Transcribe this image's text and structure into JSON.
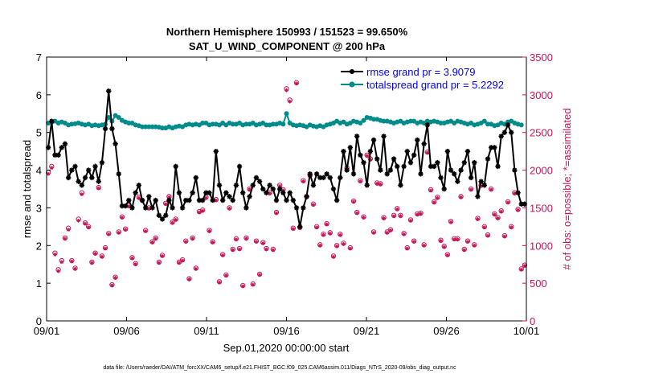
{
  "chart_data": {
    "type": "line",
    "title_line1": "Northern Hemisphere 150993 / 151523 = 99.650%",
    "title_line2": "SAT_U_WIND_COMPONENT @ 200 hPa",
    "xlabel": "Sep.01,2020 00:00:00 start",
    "ylabel_left": "rmse and totalspread",
    "ylabel_right": "# of obs: o=possible; *=assimilated",
    "footnote": "data file: /Users/raeder/DAI/ATM_forcXX/CAM6_setup/f.e21.FHIST_BGC.f09_025.CAM6assim.011/Diags_NTrS_2020-09/obs_diag_output.nc",
    "x_tick_labels": [
      "09/01",
      "09/06",
      "09/11",
      "09/16",
      "09/21",
      "09/26",
      "10/01"
    ],
    "x_tick_days": [
      0,
      5,
      10,
      15,
      20,
      25,
      30
    ],
    "xlim": [
      0,
      30
    ],
    "ylim_left": [
      0,
      7
    ],
    "y_left_ticks": [
      "0",
      "1",
      "2",
      "3",
      "4",
      "5",
      "6",
      "7"
    ],
    "ylim_right": [
      0,
      3500
    ],
    "y_right_ticks": [
      "0",
      "500",
      "1000",
      "1500",
      "2000",
      "2500",
      "3000",
      "3500"
    ],
    "legend": [
      "rmse grand pr = 3.9079",
      "totalspread grand pr = 5.2292"
    ],
    "colors": {
      "rmse": "#000000",
      "spread": "#008b8b",
      "obs": "#c8155a"
    },
    "series": [
      {
        "name": "rmse",
        "values": [
          4.6,
          5.3,
          4.4,
          4.4,
          4.6,
          4.7,
          3.8,
          4.0,
          4.1,
          3.7,
          3.6,
          3.8,
          4.0,
          3.8,
          4.1,
          3.7,
          4.2,
          5.1,
          6.1,
          5.1,
          4.7,
          3.9,
          3.05,
          3.05,
          3.2,
          3.0,
          3.4,
          3.6,
          3.2,
          3.0,
          3.3,
          3.0,
          3.2,
          2.8,
          2.7,
          2.8,
          3.2,
          3.0,
          4.1,
          3.4,
          3.0,
          3.2,
          3.2,
          3.4,
          3.8,
          3.2,
          3.2,
          3.4,
          3.4,
          3.2,
          4.5,
          3.6,
          3.2,
          3.4,
          3.3,
          3.2,
          3.6,
          4.1,
          3.4,
          3.0,
          3.3,
          3.6,
          3.8,
          3.7,
          3.5,
          3.4,
          3.6,
          3.5,
          3.2,
          3.5,
          3.4,
          3.2,
          3.4,
          3.2,
          3.0,
          2.5,
          3.0,
          3.3,
          3.9,
          3.6,
          3.9,
          3.8,
          3.8,
          3.9,
          3.8,
          3.5,
          3.2,
          3.8,
          4.5,
          4.0,
          4.6,
          3.9,
          4.9,
          4.4,
          4.2,
          3.6,
          4.5,
          4.8,
          4.3,
          4.0,
          4.9,
          3.9,
          4.0,
          4.3,
          4.1,
          3.6,
          4.1,
          4.5,
          4.2,
          4.4,
          4.8,
          3.9,
          4.7,
          5.2,
          4.1,
          4.1,
          4.2,
          3.8,
          3.5,
          4.5,
          4.0,
          3.9,
          3.7,
          4.0,
          4.2,
          4.5,
          3.8,
          4.2,
          3.3,
          3.7,
          3.6,
          4.3,
          4.6,
          4.6,
          4.1,
          4.9,
          5.0,
          5.2,
          5.0,
          4.0,
          3.4,
          3.1,
          3.1
        ]
      },
      {
        "name": "totalspread",
        "values": [
          5.25,
          5.27,
          5.3,
          5.25,
          5.28,
          5.25,
          5.2,
          5.22,
          5.23,
          5.25,
          5.22,
          5.2,
          5.22,
          5.18,
          5.2,
          5.18,
          5.2,
          5.22,
          5.4,
          5.3,
          5.45,
          5.4,
          5.32,
          5.28,
          5.25,
          5.25,
          5.2,
          5.18,
          5.15,
          5.15,
          5.15,
          5.15,
          5.15,
          5.14,
          5.12,
          5.12,
          5.15,
          5.12,
          5.15,
          5.17,
          5.15,
          5.2,
          5.22,
          5.2,
          5.22,
          5.2,
          5.25,
          5.25,
          5.2,
          5.22,
          5.22,
          5.2,
          5.25,
          5.2,
          5.25,
          5.22,
          5.22,
          5.25,
          5.2,
          5.22,
          5.22,
          5.25,
          5.2,
          5.22,
          5.25,
          5.2,
          5.2,
          5.22,
          5.22,
          5.25,
          5.22,
          5.5,
          5.25,
          5.2,
          5.18,
          5.2,
          5.18,
          5.15,
          5.2,
          5.17,
          5.15,
          5.18,
          5.15,
          5.2,
          5.22,
          5.25,
          5.3,
          5.25,
          5.28,
          5.22,
          5.25,
          5.3,
          5.28,
          5.25,
          5.32,
          5.4,
          5.38,
          5.35,
          5.35,
          5.32,
          5.3,
          5.3,
          5.28,
          5.25,
          5.28,
          5.3,
          5.25,
          5.28,
          5.3,
          5.3,
          5.25,
          5.28,
          5.25,
          5.3,
          5.28,
          5.3,
          5.28,
          5.25,
          5.25,
          5.28,
          5.3,
          5.25,
          5.3,
          5.28,
          5.25,
          5.22,
          5.25,
          5.2,
          5.22,
          5.25,
          5.3,
          5.22,
          5.22,
          5.18,
          5.2,
          5.25,
          5.22,
          5.28,
          5.3,
          5.25,
          5.22,
          5.2
        ]
      },
      {
        "name": "obs_possible",
        "values": [
          1970,
          2050,
          900,
          680,
          800,
          1100,
          1230,
          800,
          700,
          1350,
          1700,
          1300,
          1250,
          780,
          900,
          1770,
          860,
          970,
          1160,
          480,
          580,
          1180,
          1380,
          1220,
          1530,
          840,
          760,
          1640,
          1600,
          1200,
          1500,
          1050,
          1100,
          780,
          870,
          1560,
          1650,
          1310,
          1350,
          780,
          810,
          1060,
          560,
          1100,
          700,
          1450,
          1470,
          1640,
          1200,
          1050,
          1610,
          520,
          880,
          610,
          1500,
          950,
          1090,
          960,
          470,
          1100,
          1750,
          490,
          1060,
          620,
          1040,
          960,
          1700,
          950,
          1440,
          1800,
          1740,
          3080,
          2930,
          1230,
          3160,
          1240,
          1860,
          1650,
          1930,
          1550,
          1250,
          1010,
          1150,
          1290,
          1170,
          860,
          1000,
          1150,
          1030,
          2030,
          970,
          1590,
          1440,
          1860,
          1380,
          2200,
          2150,
          1180,
          1830,
          1820,
          1370,
          1180,
          1210,
          1400,
          1490,
          1400,
          1160,
          970,
          1340,
          1060,
          1420,
          1430,
          1010,
          2240,
          1740,
          1580,
          1640,
          1070,
          990,
          880,
          1320,
          1090,
          1090,
          1650,
          950,
          1060,
          1750,
          1010,
          1360,
          1800,
          1250,
          1140,
          1750,
          1420,
          1370,
          1460,
          1130,
          1580,
          1250,
          1700,
          1480,
          690,
          740
        ]
      },
      {
        "name": "obs_assimilated",
        "values": [
          1950,
          2030,
          880,
          660,
          780,
          1090,
          1210,
          790,
          690,
          1330,
          1680,
          1290,
          1240,
          770,
          890,
          1760,
          850,
          960,
          1150,
          470,
          570,
          1170,
          1370,
          1210,
          1520,
          830,
          750,
          1630,
          1590,
          1190,
          1490,
          1040,
          1090,
          770,
          860,
          1550,
          1640,
          1300,
          1340,
          770,
          800,
          1050,
          550,
          1090,
          690,
          1440,
          1460,
          1630,
          1190,
          1040,
          1600,
          510,
          870,
          600,
          1490,
          940,
          1080,
          950,
          460,
          1090,
          1740,
          480,
          1050,
          610,
          1030,
          950,
          1690,
          940,
          1430,
          1790,
          1730,
          3060,
          2910,
          1220,
          3150,
          1230,
          1850,
          1640,
          1920,
          1540,
          1240,
          1000,
          1140,
          1280,
          1160,
          850,
          990,
          1140,
          1020,
          2020,
          960,
          1580,
          1430,
          1850,
          1370,
          2190,
          2140,
          1170,
          1820,
          1810,
          1360,
          1170,
          1200,
          1390,
          1480,
          1390,
          1150,
          960,
          1330,
          1050,
          1410,
          1420,
          1000,
          2230,
          1730,
          1570,
          1630,
          1060,
          980,
          870,
          1310,
          1080,
          1080,
          1640,
          940,
          1050,
          1740,
          1000,
          1350,
          1790,
          1240,
          1130,
          1740,
          1410,
          1360,
          1450,
          1120,
          1570,
          1240,
          1690,
          1470,
          680,
          730
        ]
      }
    ]
  }
}
